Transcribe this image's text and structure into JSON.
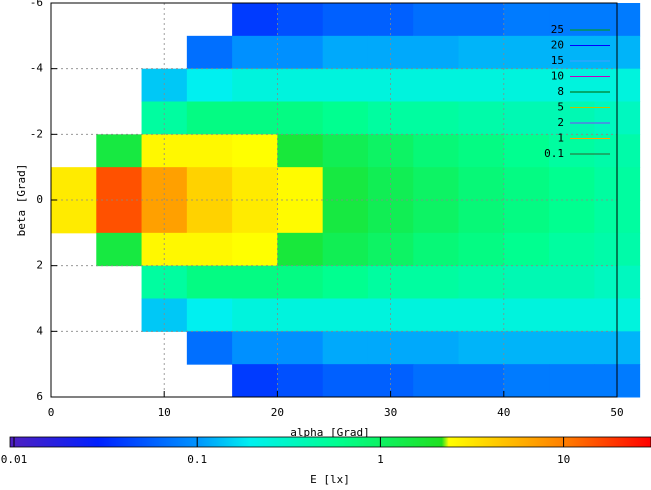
{
  "chart_data": {
    "type": "heatmap",
    "x_label": "alpha [Grad]",
    "y_label": "beta [Grad]",
    "x": [
      2,
      6,
      10,
      14,
      18,
      22,
      26,
      30,
      34,
      38,
      42,
      46,
      50
    ],
    "y": [
      -5.5,
      -4.5,
      -3.5,
      -2.5,
      -1.5,
      -0.5,
      0.5,
      1.5,
      2.5,
      3.5,
      4.5,
      5.5
    ],
    "z": [
      [
        null,
        null,
        null,
        null,
        0.04,
        0.05,
        0.06,
        0.06,
        0.07,
        0.07,
        0.08,
        0.08,
        0.08
      ],
      [
        null,
        null,
        null,
        0.07,
        0.1,
        0.1,
        0.12,
        0.12,
        0.12,
        0.13,
        0.13,
        0.13,
        0.13
      ],
      [
        null,
        null,
        0.15,
        0.2,
        0.25,
        0.25,
        0.25,
        0.25,
        0.25,
        0.25,
        0.25,
        0.25,
        0.25
      ],
      [
        null,
        null,
        0.5,
        0.7,
        0.7,
        0.7,
        0.6,
        0.5,
        0.5,
        0.45,
        0.4,
        0.4,
        0.35
      ],
      [
        null,
        1.5,
        2.6,
        2.6,
        2.4,
        1.6,
        1.2,
        1,
        0.8,
        0.7,
        0.6,
        0.5,
        0.45
      ],
      [
        3,
        15,
        7,
        4,
        3,
        2.5,
        1.5,
        1.2,
        1,
        0.8,
        0.7,
        0.6,
        0.5
      ],
      [
        3,
        15,
        7,
        4,
        3,
        2.5,
        1.5,
        1.2,
        1,
        0.8,
        0.7,
        0.6,
        0.5
      ],
      [
        null,
        1.5,
        2.6,
        2.6,
        2.4,
        1.6,
        1.2,
        1,
        0.8,
        0.7,
        0.6,
        0.5,
        0.45
      ],
      [
        null,
        null,
        0.5,
        0.7,
        0.7,
        0.7,
        0.6,
        0.5,
        0.5,
        0.45,
        0.4,
        0.4,
        0.35
      ],
      [
        null,
        null,
        0.15,
        0.2,
        0.25,
        0.25,
        0.25,
        0.25,
        0.25,
        0.25,
        0.25,
        0.25,
        0.25
      ],
      [
        null,
        null,
        null,
        0.07,
        0.1,
        0.1,
        0.12,
        0.12,
        0.12,
        0.13,
        0.13,
        0.13,
        0.13
      ],
      [
        null,
        null,
        null,
        null,
        0.04,
        0.05,
        0.06,
        0.06,
        0.07,
        0.07,
        0.08,
        0.08,
        0.08
      ]
    ],
    "xlim": [
      0,
      50
    ],
    "xticks": [
      0,
      10,
      20,
      30,
      40,
      50
    ],
    "ylim": [
      -6,
      6
    ],
    "yticks": [
      -6,
      -4,
      -2,
      0,
      2,
      4,
      6
    ],
    "y_inverted": true,
    "grid": true,
    "colorbar": {
      "label": "E [lx]",
      "clim": [
        0.01,
        30
      ],
      "ticks": [
        0.01,
        0.1,
        1,
        10
      ],
      "log": true
    },
    "colormap": [
      {
        "value": 0.01,
        "color": "#5020c0"
      },
      {
        "value": 0.03,
        "color": "#0020ff"
      },
      {
        "value": 0.1,
        "color": "#0090ff"
      },
      {
        "value": 0.2,
        "color": "#00f0f0"
      },
      {
        "value": 0.6,
        "color": "#00ff90"
      },
      {
        "value": 2.2,
        "color": "#20e020"
      },
      {
        "value": 2.4,
        "color": "#ffff00"
      },
      {
        "value": 10,
        "color": "#ff8000"
      },
      {
        "value": 30,
        "color": "#ff0000"
      }
    ],
    "contours": [
      {
        "name": "25",
        "color": "#00a000"
      },
      {
        "name": "20",
        "color": "#0000ff"
      },
      {
        "name": "15",
        "color": "#40a0ff"
      },
      {
        "name": "10",
        "color": "#c000c0"
      },
      {
        "name": "8",
        "color": "#006000"
      },
      {
        "name": "5",
        "color": "#c0c000"
      },
      {
        "name": "2",
        "color": "#8040ff"
      },
      {
        "name": "1",
        "color": "#ffa000"
      },
      {
        "name": "0.1",
        "color": "#306030"
      }
    ]
  }
}
